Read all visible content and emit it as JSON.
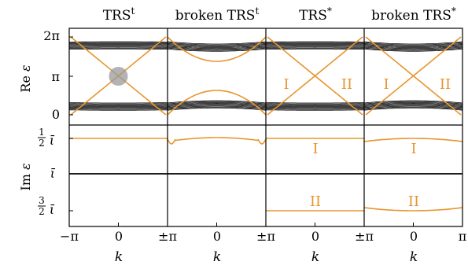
{
  "panels": [
    {
      "title_base": "TRS",
      "title_sup": "t",
      "variant": "trs_t",
      "im_orange_label": "",
      "im_lower_label": ""
    },
    {
      "title_base": "broken TRS",
      "title_sup": "t",
      "variant": "broken_trs_t",
      "im_orange_label": "",
      "im_lower_label": ""
    },
    {
      "title_base": "TRS",
      "title_sup": "*",
      "variant": "trs_star",
      "re_left_label": "I",
      "re_right_label": "II",
      "im_orange_label": "I",
      "im_lower_label": "II"
    },
    {
      "title_base": "broken TRS",
      "title_sup": "*",
      "variant": "broken_trs_star",
      "re_left_label": "I",
      "re_right_label": "II",
      "im_orange_label": "I",
      "im_lower_label": "II"
    }
  ],
  "re_axis": {
    "label_main": "Re",
    "label_var": "ε",
    "ticks": [
      "2π",
      "π",
      "0"
    ]
  },
  "im_axis": {
    "label_main": "Im",
    "label_var": "ε",
    "ticks": [
      {
        "num": "1",
        "den": "2",
        "sym": "ῑ"
      },
      {
        "num": "",
        "den": "",
        "sym": "ῑ"
      },
      {
        "num": "3",
        "den": "2",
        "sym": "ῑ"
      }
    ]
  },
  "k_axis": {
    "tick_labels": [
      "−π",
      "0",
      "±π",
      "0",
      "±π",
      "0",
      "±π",
      "0",
      "π"
    ],
    "label": "k"
  },
  "colors": {
    "orange": "#e8952f",
    "band": "#000000",
    "highlight": "#9a9a9a"
  }
}
